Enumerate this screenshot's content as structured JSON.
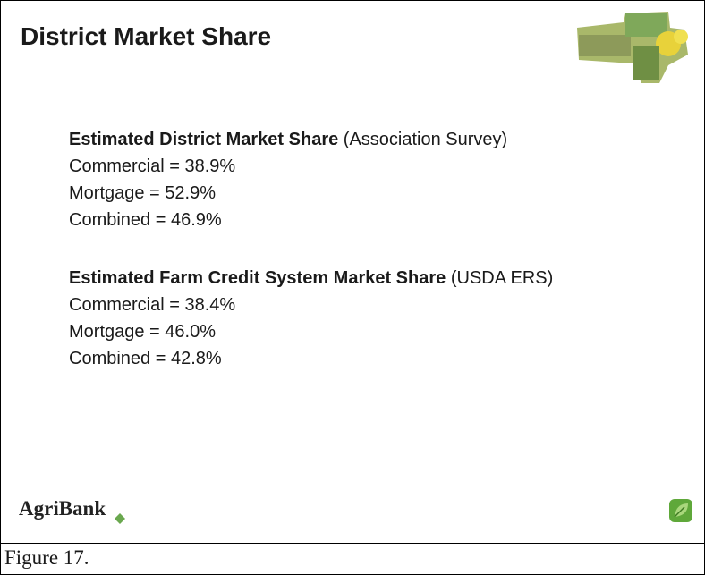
{
  "slide": {
    "title": "District Market Share",
    "sections": [
      {
        "heading": "Estimated District Market Share",
        "source": "(Association Survey)",
        "lines": [
          "Commercial = 38.9%",
          "Mortgage = 52.9%",
          "Combined = 46.9%"
        ]
      },
      {
        "heading": "Estimated Farm Credit System Market Share",
        "source": "(USDA ERS)",
        "lines": [
          "Commercial = 38.4%",
          "Mortgage = 46.0%",
          "Combined = 42.8%"
        ]
      }
    ],
    "logo": "AgriBank"
  },
  "caption": "Figure 17."
}
